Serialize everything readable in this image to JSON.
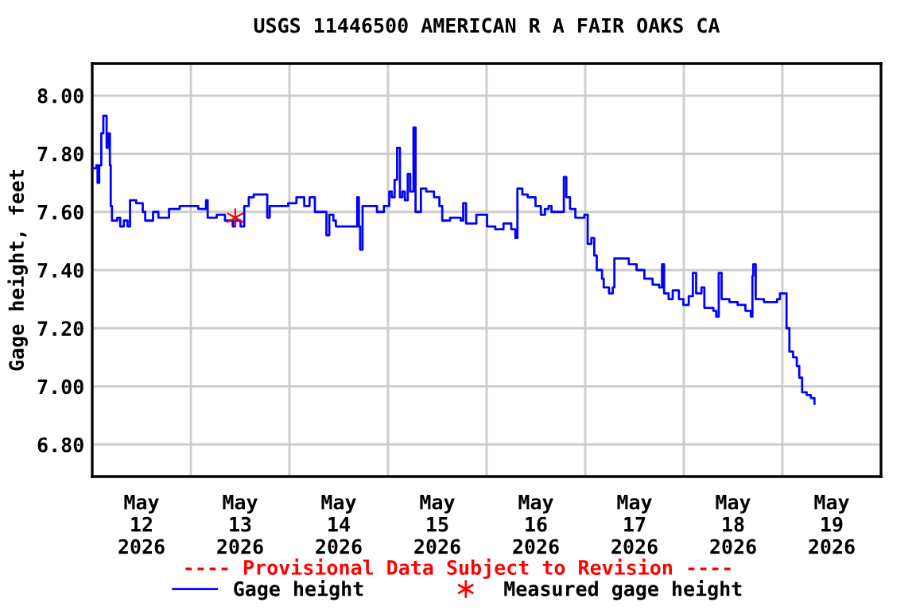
{
  "chart_data": {
    "type": "step",
    "title": "USGS 11446500 AMERICAN R A FAIR OAKS CA",
    "ylabel": "Gage height, feet",
    "annotations": [
      "---- Provisional Data Subject to Revision ----"
    ],
    "xlim": [
      "2026-05-12T00:00",
      "2026-05-20T00:00"
    ],
    "xticks": [
      {
        "value": "2026-05-12T12:00",
        "label": "May\n12\n2026"
      },
      {
        "value": "2026-05-13T00:00",
        "label": null
      },
      {
        "value": "2026-05-13T12:00",
        "label": "May\n13\n2026"
      },
      {
        "value": "2026-05-14T00:00",
        "label": null
      },
      {
        "value": "2026-05-14T12:00",
        "label": "May\n14\n2026"
      },
      {
        "value": "2026-05-15T00:00",
        "label": null
      },
      {
        "value": "2026-05-15T12:00",
        "label": "May\n15\n2026"
      },
      {
        "value": "2026-05-16T00:00",
        "label": null
      },
      {
        "value": "2026-05-16T12:00",
        "label": "May\n16\n2026"
      },
      {
        "value": "2026-05-17T00:00",
        "label": null
      },
      {
        "value": "2026-05-17T12:00",
        "label": "May\n17\n2026"
      },
      {
        "value": "2026-05-18T00:00",
        "label": null
      },
      {
        "value": "2026-05-18T12:00",
        "label": "May\n18\n2026"
      },
      {
        "value": "2026-05-19T00:00",
        "label": null
      },
      {
        "value": "2026-05-19T12:00",
        "label": "May\n19\n2026"
      }
    ],
    "ylim": [
      6.69,
      8.11
    ],
    "yticks": [
      {
        "value": 6.8,
        "label": "6.80"
      },
      {
        "value": 7.0,
        "label": "7.00"
      },
      {
        "value": 7.2,
        "label": "7.20"
      },
      {
        "value": 7.4,
        "label": "7.40"
      },
      {
        "value": 7.6,
        "label": "7.60"
      },
      {
        "value": 7.8,
        "label": "7.80"
      },
      {
        "value": 8.0,
        "label": "8.00"
      }
    ],
    "grid": true,
    "legend": "bottom",
    "series": [
      {
        "name": "Gage height",
        "color": "#0000ff",
        "marker": "none",
        "x": [
          "2026-05-12T00:00",
          "2026-05-12T01:00",
          "2026-05-12T01:18",
          "2026-05-12T01:42",
          "2026-05-12T02:12",
          "2026-05-12T02:42",
          "2026-05-12T03:12",
          "2026-05-12T03:30",
          "2026-05-12T03:54",
          "2026-05-12T04:18",
          "2026-05-12T04:30",
          "2026-05-12T04:48",
          "2026-05-12T06:06",
          "2026-05-12T06:48",
          "2026-05-12T07:42",
          "2026-05-12T08:36",
          "2026-05-12T09:12",
          "2026-05-12T10:42",
          "2026-05-12T12:18",
          "2026-05-12T12:54",
          "2026-05-12T14:48",
          "2026-05-12T16:06",
          "2026-05-12T18:42",
          "2026-05-12T21:18",
          "2026-05-12T23:54",
          "2026-05-13T01:48",
          "2026-05-13T03:42",
          "2026-05-13T04:06",
          "2026-05-13T06:18",
          "2026-05-13T08:18",
          "2026-05-13T10:12",
          "2026-05-13T10:48",
          "2026-05-13T12:06",
          "2026-05-13T13:00",
          "2026-05-13T14:06",
          "2026-05-13T15:18",
          "2026-05-13T17:54",
          "2026-05-13T18:36",
          "2026-05-13T19:12",
          "2026-05-13T21:12",
          "2026-05-13T23:42",
          "2026-05-14T01:42",
          "2026-05-14T03:36",
          "2026-05-14T04:54",
          "2026-05-14T06:12",
          "2026-05-14T08:24",
          "2026-05-14T09:00",
          "2026-05-14T09:42",
          "2026-05-14T10:42",
          "2026-05-14T11:18",
          "2026-05-14T13:18",
          "2026-05-14T15:12",
          "2026-05-14T16:30",
          "2026-05-14T16:54",
          "2026-05-14T17:12",
          "2026-05-14T17:48",
          "2026-05-14T19:42",
          "2026-05-14T21:18",
          "2026-05-14T23:00",
          "2026-05-15T00:18",
          "2026-05-15T00:54",
          "2026-05-15T01:36",
          "2026-05-15T02:12",
          "2026-05-15T02:54",
          "2026-05-15T03:30",
          "2026-05-15T04:06",
          "2026-05-15T04:48",
          "2026-05-15T05:24",
          "2026-05-15T06:12",
          "2026-05-15T06:42",
          "2026-05-15T07:18",
          "2026-05-15T08:00",
          "2026-05-15T09:18",
          "2026-05-15T11:12",
          "2026-05-15T12:30",
          "2026-05-15T13:12",
          "2026-05-15T15:06",
          "2026-05-15T17:42",
          "2026-05-15T18:18",
          "2026-05-15T19:00",
          "2026-05-15T21:30",
          "2026-05-16T00:06",
          "2026-05-16T02:06",
          "2026-05-16T04:06",
          "2026-05-16T06:00",
          "2026-05-16T07:00",
          "2026-05-16T07:30",
          "2026-05-16T08:18",
          "2026-05-16T08:42",
          "2026-05-16T10:00",
          "2026-05-16T11:54",
          "2026-05-16T13:12",
          "2026-05-16T14:12",
          "2026-05-16T15:06",
          "2026-05-16T15:48",
          "2026-05-16T18:24",
          "2026-05-16T18:48",
          "2026-05-16T19:24",
          "2026-05-16T20:18",
          "2026-05-16T21:36",
          "2026-05-16T23:48",
          "2026-05-17T00:36",
          "2026-05-17T01:30",
          "2026-05-17T02:12",
          "2026-05-17T02:48",
          "2026-05-17T04:06",
          "2026-05-17T04:30",
          "2026-05-17T05:48",
          "2026-05-17T06:42",
          "2026-05-17T07:06",
          "2026-05-17T09:18",
          "2026-05-17T10:36",
          "2026-05-17T12:30",
          "2026-05-17T14:24",
          "2026-05-17T16:24",
          "2026-05-17T18:00",
          "2026-05-17T18:42",
          "2026-05-17T19:12",
          "2026-05-17T20:18",
          "2026-05-17T21:18",
          "2026-05-17T22:48",
          "2026-05-17T23:54",
          "2026-05-18T01:12",
          "2026-05-18T02:12",
          "2026-05-18T03:00",
          "2026-05-18T04:18",
          "2026-05-18T05:00",
          "2026-05-18T07:12",
          "2026-05-18T07:54",
          "2026-05-18T08:30",
          "2026-05-18T09:12",
          "2026-05-18T11:06",
          "2026-05-18T13:06",
          "2026-05-18T15:00",
          "2026-05-18T16:18",
          "2026-05-18T16:42",
          "2026-05-18T16:54",
          "2026-05-18T17:30",
          "2026-05-18T19:30",
          "2026-05-18T22:42",
          "2026-05-18T23:24",
          "2026-05-19T00:42",
          "2026-05-19T01:00",
          "2026-05-19T01:42",
          "2026-05-19T02:36",
          "2026-05-19T03:30",
          "2026-05-19T04:06",
          "2026-05-19T04:48",
          "2026-05-19T05:54",
          "2026-05-19T06:54",
          "2026-05-19T07:48"
        ],
        "values": [
          7.75,
          7.76,
          7.7,
          7.76,
          7.87,
          7.93,
          7.93,
          7.82,
          7.87,
          7.76,
          7.62,
          7.57,
          7.58,
          7.55,
          7.57,
          7.55,
          7.64,
          7.63,
          7.6,
          7.57,
          7.6,
          7.58,
          7.61,
          7.62,
          7.62,
          7.61,
          7.64,
          7.58,
          7.59,
          7.57,
          7.55,
          7.57,
          7.55,
          7.62,
          7.65,
          7.66,
          7.66,
          7.58,
          7.62,
          7.62,
          7.63,
          7.65,
          7.62,
          7.65,
          7.6,
          7.6,
          7.52,
          7.59,
          7.57,
          7.55,
          7.55,
          7.55,
          7.65,
          7.55,
          7.47,
          7.62,
          7.62,
          7.6,
          7.62,
          7.67,
          7.65,
          7.71,
          7.82,
          7.65,
          7.67,
          7.64,
          7.73,
          7.67,
          7.89,
          7.6,
          7.6,
          7.68,
          7.67,
          7.65,
          7.62,
          7.57,
          7.58,
          7.57,
          7.63,
          7.56,
          7.59,
          7.55,
          7.54,
          7.56,
          7.54,
          7.51,
          7.68,
          7.68,
          7.66,
          7.65,
          7.62,
          7.59,
          7.61,
          7.62,
          7.6,
          7.6,
          7.72,
          7.65,
          7.61,
          7.58,
          7.59,
          7.49,
          7.51,
          7.45,
          7.4,
          7.37,
          7.34,
          7.32,
          7.34,
          7.44,
          7.44,
          7.42,
          7.4,
          7.37,
          7.35,
          7.34,
          7.42,
          7.32,
          7.3,
          7.33,
          7.3,
          7.28,
          7.31,
          7.39,
          7.32,
          7.34,
          7.27,
          7.26,
          7.24,
          7.39,
          7.3,
          7.29,
          7.28,
          7.26,
          7.24,
          7.38,
          7.42,
          7.3,
          7.29,
          7.3,
          7.32,
          7.32,
          7.2,
          7.12,
          7.1,
          7.07,
          7.03,
          6.98,
          6.97,
          6.96,
          6.94
        ]
      },
      {
        "name": "Measured gage height",
        "type": "scatter",
        "color": "#ff0000",
        "marker": "cross",
        "x": [
          "2026-05-13T10:48"
        ],
        "values": [
          7.58
        ]
      }
    ]
  }
}
